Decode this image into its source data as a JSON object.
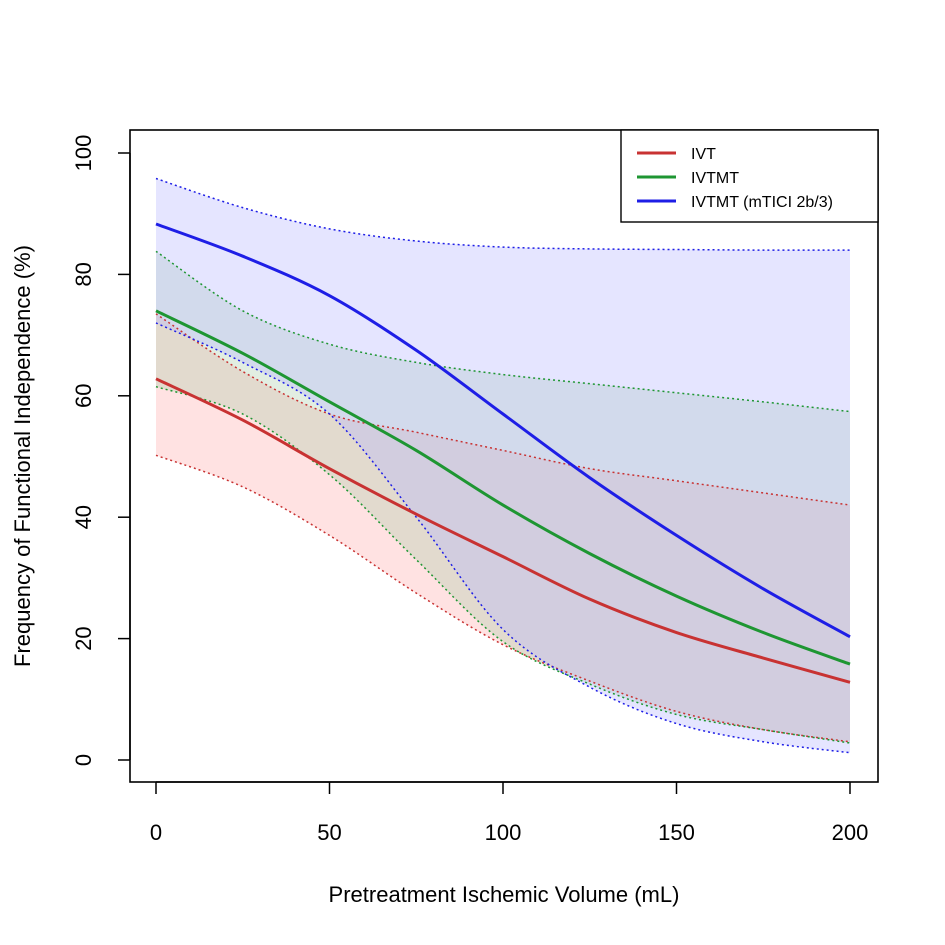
{
  "chart_data": {
    "type": "line",
    "title": "",
    "xlabel": "Pretreatment Ischemic Volume (mL)",
    "ylabel": "Frequency of Functional Independence (%)",
    "xlim": [
      0,
      200
    ],
    "ylim": [
      0,
      100
    ],
    "xticks": [
      "0",
      "50",
      "100",
      "150",
      "200"
    ],
    "yticks": [
      "0",
      "20",
      "40",
      "60",
      "80",
      "100"
    ],
    "legend_position": "top-right",
    "x": [
      0,
      25,
      50,
      75,
      100,
      125,
      150,
      175,
      200
    ],
    "series": [
      {
        "name": "IVT",
        "color": "#C83232",
        "fill": "rgba(255,160,160,0.30)",
        "values": [
          62.8,
          56,
          48,
          40.5,
          33.5,
          26.5,
          21,
          16.8,
          12.8
        ],
        "lower": [
          50.2,
          45,
          37,
          27.5,
          19,
          13,
          8,
          5,
          3
        ],
        "upper": [
          73.5,
          64,
          57,
          54,
          51,
          48,
          46,
          44,
          42
        ]
      },
      {
        "name": "IVTMT",
        "color": "#1E9632",
        "fill": "rgba(160,200,160,0.30)",
        "values": [
          74,
          67,
          59,
          51,
          42,
          34,
          27,
          21,
          15.8
        ],
        "lower": [
          61.5,
          57,
          47,
          33,
          19.5,
          12.5,
          7.5,
          5,
          2.8
        ],
        "upper": [
          83.8,
          74,
          68.5,
          65.5,
          63.5,
          62,
          60.5,
          59,
          57.4
        ]
      },
      {
        "name": "IVTMT (mTICI 2b/3)",
        "color": "#1E1EE6",
        "fill": "rgba(180,180,255,0.35)",
        "values": [
          88.3,
          83,
          76.5,
          67.5,
          57,
          46.5,
          37,
          28.2,
          20.3
        ],
        "lower": [
          72,
          65.5,
          57,
          40,
          21.5,
          12,
          6,
          3,
          1.2
        ],
        "upper": [
          95.8,
          91,
          87.5,
          85.5,
          84.5,
          84.2,
          84.1,
          84,
          84
        ]
      }
    ]
  }
}
